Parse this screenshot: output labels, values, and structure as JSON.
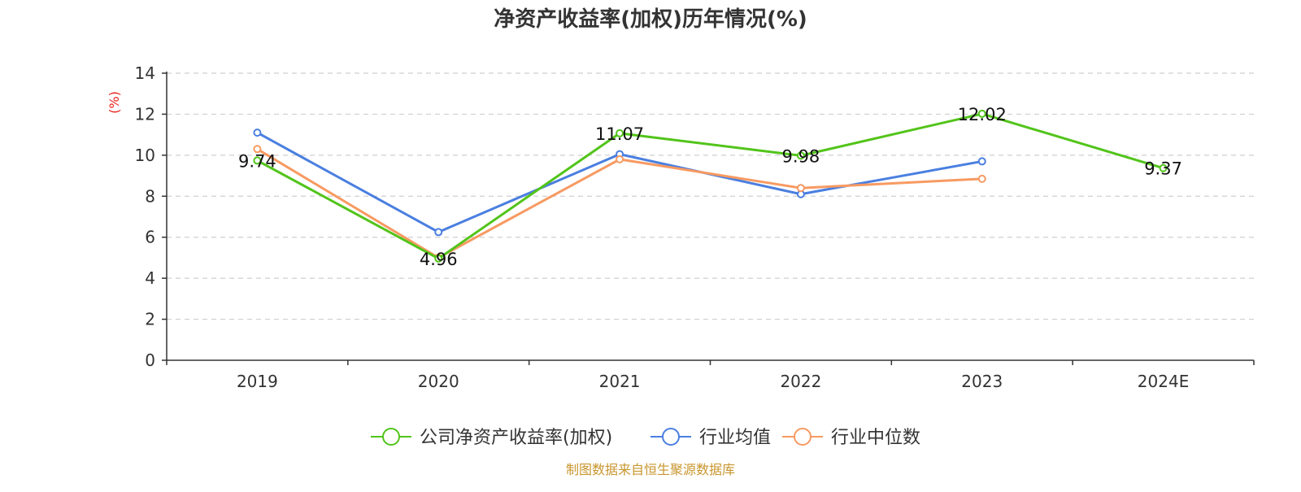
{
  "chart_data": {
    "type": "line",
    "title": "净资产收益率(加权)历年情况(%)",
    "ylabel": "(%)",
    "xlabel": "",
    "categories": [
      "2019",
      "2020",
      "2021",
      "2022",
      "2023",
      "2024E"
    ],
    "ylim": [
      0,
      14
    ],
    "yticks": [
      0,
      2,
      4,
      6,
      8,
      10,
      12,
      14
    ],
    "grid": true,
    "legend_position": "bottom",
    "series": [
      {
        "name": "公司净资产收益率(加权)",
        "color": "#52c41a",
        "values": [
          9.74,
          4.96,
          11.07,
          9.98,
          12.02,
          9.37
        ],
        "labels": [
          "9.74",
          "4.96",
          "11.07",
          "9.98",
          "12.02",
          "9.37"
        ]
      },
      {
        "name": "行业均值",
        "color": "#4a7fe0",
        "values": [
          11.1,
          6.25,
          10.05,
          8.1,
          9.7,
          null
        ]
      },
      {
        "name": "行业中位数",
        "color": "#f79a62",
        "values": [
          10.3,
          5.0,
          9.8,
          8.4,
          8.85,
          null
        ]
      }
    ],
    "source": "制图数据来自恒生聚源数据库"
  }
}
